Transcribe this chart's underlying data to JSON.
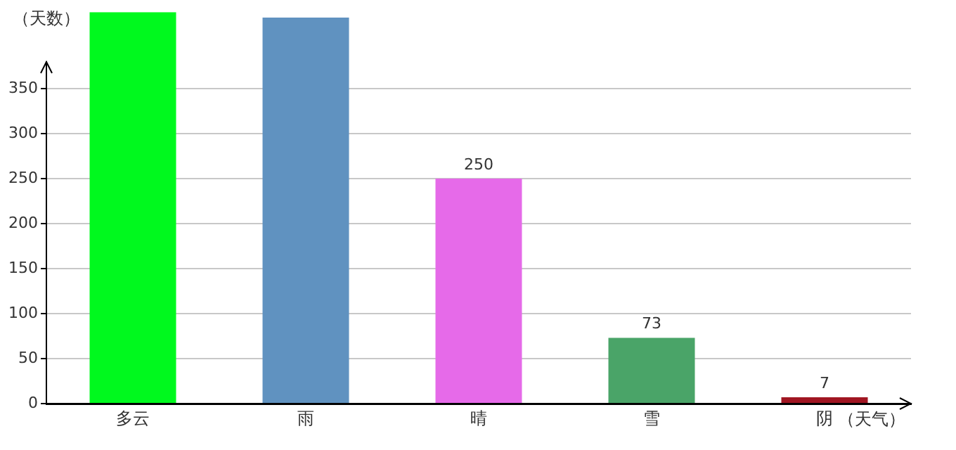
{
  "chart_data": {
    "type": "bar",
    "xlabel": "（天气）",
    "ylabel": "（天数）",
    "categories": [
      "多云",
      "雨",
      "晴",
      "雪",
      "阴"
    ],
    "values": [
      435,
      429,
      250,
      73,
      7
    ],
    "colors": [
      "#00f91e",
      "#6092c0",
      "#e66ae9",
      "#4aa468",
      "#a01622"
    ],
    "value_labels": [
      null,
      null,
      "250",
      "73",
      "7"
    ],
    "ylim": [
      0,
      435
    ],
    "yticks": [
      0,
      50,
      100,
      150,
      200,
      250,
      300,
      350
    ],
    "grid": "y",
    "legend": false
  }
}
